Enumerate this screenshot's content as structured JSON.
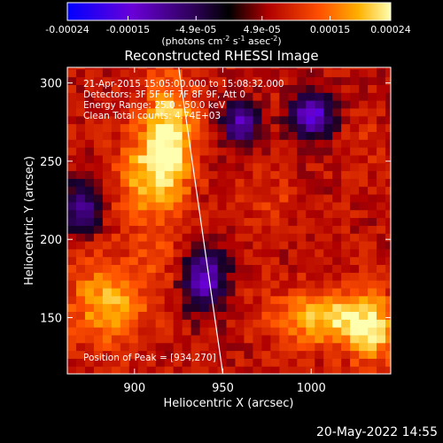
{
  "chart_data": {
    "type": "heatmap",
    "title": "Reconstructed RHESSI Image",
    "xlabel": "Heliocentric X (arcsec)",
    "ylabel": "Heliocentric Y (arcsec)",
    "xlim": [
      862,
      1045
    ],
    "ylim": [
      114,
      310
    ],
    "x_ticks": [
      900,
      950,
      1000
    ],
    "y_ticks": [
      150,
      200,
      250,
      300
    ],
    "colorbar": {
      "range": [
        -0.00024,
        0.00024
      ],
      "tick_values": [
        -0.00024,
        -0.00015,
        -4.9e-05,
        4.9e-05,
        0.00015,
        0.00024
      ],
      "tick_labels": [
        "-0.00024",
        "-0.00015",
        "-4.9e-05",
        "4.9e-05",
        "0.00015",
        "0.00024"
      ],
      "unit_label": "(photons cm",
      "unit_sup1": "-2",
      "unit_mid": " s",
      "unit_sup2": "-1",
      "unit_end": " asec",
      "unit_sup3": "-2",
      "unit_close": ")"
    },
    "grid": false,
    "annotations": [
      "21-Apr-2015 15:05:00.000 to 15:08:32.000",
      "Detectors: 3F 5F 6F 7F 8F 9F, Att 0",
      "Energy Range: 25.0 - 50.0 keV",
      "Clean     Total counts: 4.74E+03",
      "Position of Peak = [934,270]"
    ],
    "peak": [
      934,
      270
    ],
    "limb_line": [
      [
        925,
        310
      ],
      [
        950,
        114
      ]
    ],
    "bright_regions": [
      {
        "x": 920,
        "y": 265,
        "rx": 14,
        "ry": 38,
        "level": 0.00024
      },
      {
        "x": 905,
        "y": 240,
        "rx": 16,
        "ry": 30,
        "level": 0.00017
      },
      {
        "x": 885,
        "y": 160,
        "rx": 22,
        "ry": 28,
        "level": 0.00019
      },
      {
        "x": 915,
        "y": 190,
        "rx": 14,
        "ry": 20,
        "level": 0.0001
      },
      {
        "x": 1010,
        "y": 150,
        "rx": 30,
        "ry": 18,
        "level": 0.00021
      },
      {
        "x": 1035,
        "y": 140,
        "rx": 14,
        "ry": 22,
        "level": 0.00018
      },
      {
        "x": 975,
        "y": 225,
        "rx": 14,
        "ry": 18,
        "level": 0.00011
      },
      {
        "x": 1030,
        "y": 265,
        "rx": 12,
        "ry": 20,
        "level": 9e-05
      },
      {
        "x": 985,
        "y": 290,
        "rx": 12,
        "ry": 10,
        "level": 8e-05
      }
    ],
    "dark_regions": [
      {
        "x": 1000,
        "y": 280,
        "rx": 12,
        "ry": 14,
        "level": -0.00016
      },
      {
        "x": 940,
        "y": 175,
        "rx": 12,
        "ry": 20,
        "level": -0.00013
      },
      {
        "x": 960,
        "y": 275,
        "rx": 10,
        "ry": 14,
        "level": -0.00012
      },
      {
        "x": 870,
        "y": 220,
        "rx": 10,
        "ry": 16,
        "level": -0.00011
      }
    ]
  },
  "footer": {
    "date": "20-May-2022 14:55"
  }
}
